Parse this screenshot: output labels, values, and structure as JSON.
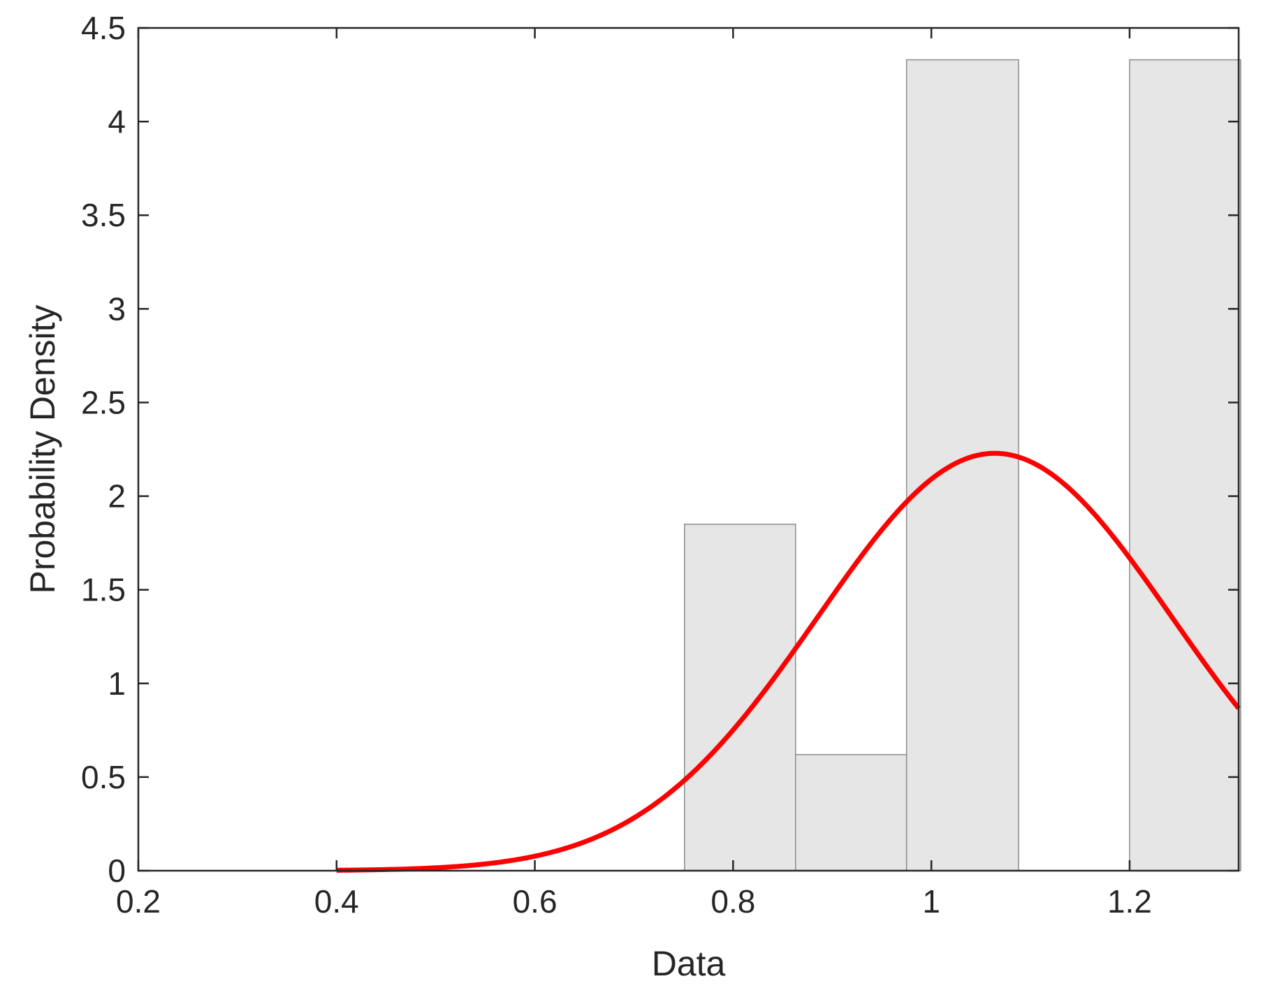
{
  "chart_data": {
    "type": "bar",
    "title": "",
    "xlabel": "Data",
    "ylabel": "Probability Density",
    "xlim": [
      0.2,
      1.31
    ],
    "ylim": [
      0,
      4.5
    ],
    "xticks": [
      0.2,
      0.4,
      0.6,
      0.8,
      1.0,
      1.2
    ],
    "xtick_labels": [
      "0.2",
      "0.4",
      "0.6",
      "0.8",
      "1",
      "1.2"
    ],
    "yticks": [
      0,
      0.5,
      1,
      1.5,
      2,
      2.5,
      3,
      3.5,
      4,
      4.5
    ],
    "ytick_labels": [
      "0",
      "0.5",
      "1",
      "1.5",
      "2",
      "2.5",
      "3",
      "3.5",
      "4",
      "4.5"
    ],
    "grid": false,
    "histogram": {
      "bins": [
        {
          "x0": 0.751,
          "x1": 0.863,
          "density": 1.85
        },
        {
          "x0": 0.863,
          "x1": 0.975,
          "density": 0.62
        },
        {
          "x0": 0.975,
          "x1": 1.088,
          "density": 4.33
        },
        {
          "x0": 1.088,
          "x1": 1.2,
          "density": 0.0
        },
        {
          "x0": 1.2,
          "x1": 1.312,
          "density": 4.33
        }
      ],
      "fill_color": "#e6e6e6",
      "edge_color": "#8c8c8c"
    },
    "fit_curve": {
      "type": "normal-pdf",
      "mean": 1.064,
      "std": 0.179,
      "x_range": [
        0.4,
        1.31
      ],
      "color": "#ff0000"
    }
  }
}
